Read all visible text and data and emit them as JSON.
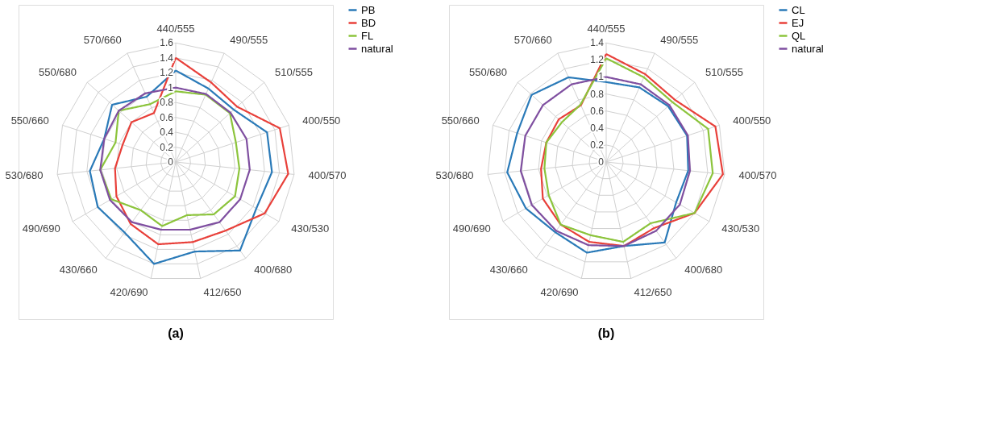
{
  "chart_data": [
    {
      "type": "radar",
      "categories": [
        "440/555",
        "490/555",
        "510/555",
        "400/550",
        "400/570",
        "430/530",
        "400/680",
        "412/650",
        "420/690",
        "430/660",
        "490/690",
        "530/680",
        "550/660",
        "550/680",
        "570/660"
      ],
      "series": [
        {
          "name": "PB",
          "color": "#2a7ab8",
          "values": [
            1.23,
            1.08,
            1.05,
            1.29,
            1.3,
            1.25,
            1.47,
            1.23,
            1.4,
            1.17,
            1.21,
            1.16,
            1.01,
            1.15,
            0.96
          ]
        },
        {
          "name": "BD",
          "color": "#e8403a",
          "values": [
            1.4,
            1.17,
            1.11,
            1.47,
            1.52,
            1.38,
            1.14,
            1.1,
            1.13,
            1.03,
            0.92,
            0.82,
            0.75,
            0.8,
            0.72
          ]
        },
        {
          "name": "FL",
          "color": "#8cc43c",
          "values": [
            0.95,
            0.99,
            0.98,
            0.85,
            0.86,
            0.92,
            0.87,
            0.73,
            0.88,
            0.8,
            1.0,
            1.02,
            0.85,
            1.03,
            0.85
          ]
        },
        {
          "name": "natural",
          "color": "#7f4fa0",
          "values": [
            1.0,
            1.0,
            0.99,
            1.0,
            1.0,
            1.0,
            1.0,
            0.93,
            0.93,
            1.0,
            1.02,
            1.02,
            1.01,
            1.03,
            1.01
          ]
        }
      ],
      "ylim": [
        0,
        1.6
      ],
      "yticks": [
        0,
        0.2,
        0.4,
        0.6,
        0.8,
        1,
        1.2,
        1.4,
        1.6
      ],
      "grid": true,
      "legend": "right",
      "line_style": "solid",
      "annotations": [
        "(a)"
      ]
    },
    {
      "type": "radar",
      "categories": [
        "440/555",
        "490/555",
        "510/555",
        "400/550",
        "400/570",
        "430/530",
        "400/680",
        "412/650",
        "420/690",
        "430/660",
        "490/690",
        "530/680",
        "550/660",
        "550/680",
        "570/660"
      ],
      "series": [
        {
          "name": "CL",
          "color": "#2a7ab8",
          "values": [
            0.94,
            0.96,
            0.98,
            1.0,
            0.97,
            0.95,
            1.17,
            1.01,
            1.09,
            1.02,
            1.09,
            1.17,
            1.1,
            1.18,
            1.09
          ]
        },
        {
          "name": "EJ",
          "color": "#e8403a",
          "values": [
            1.27,
            1.13,
            1.09,
            1.35,
            1.38,
            1.2,
            0.96,
            1.01,
            0.96,
            0.91,
            0.86,
            0.77,
            0.74,
            0.75,
            0.73
          ]
        },
        {
          "name": "QL",
          "color": "#8cc43c",
          "values": [
            1.22,
            1.09,
            1.05,
            1.26,
            1.26,
            1.2,
            0.89,
            0.96,
            0.88,
            0.91,
            0.78,
            0.73,
            0.74,
            0.7,
            0.74
          ]
        },
        {
          "name": "natural",
          "color": "#7f4fa0",
          "values": [
            1.0,
            1.0,
            1.0,
            1.01,
            0.99,
            1.0,
            1.0,
            1.01,
            1.0,
            1.0,
            1.01,
            1.01,
            1.0,
            1.0,
            1.0
          ]
        }
      ],
      "ylim": [
        0,
        1.4
      ],
      "yticks": [
        0,
        0.2,
        0.4,
        0.6,
        0.8,
        1,
        1.2,
        1.4
      ],
      "grid": true,
      "legend": "right",
      "line_style": "solid",
      "annotations": [
        "(b)"
      ]
    }
  ]
}
